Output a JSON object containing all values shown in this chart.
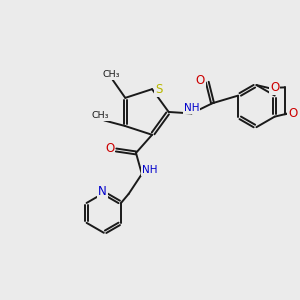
{
  "background_color": "#ebebeb",
  "bond_color": "#1a1a1a",
  "sulfur_color": "#b8b800",
  "nitrogen_color": "#0000cc",
  "oxygen_color": "#cc0000",
  "line_width": 1.4,
  "figsize": [
    3.0,
    3.0
  ],
  "dpi": 100,
  "xlim": [
    0,
    10
  ],
  "ylim": [
    0,
    10
  ]
}
